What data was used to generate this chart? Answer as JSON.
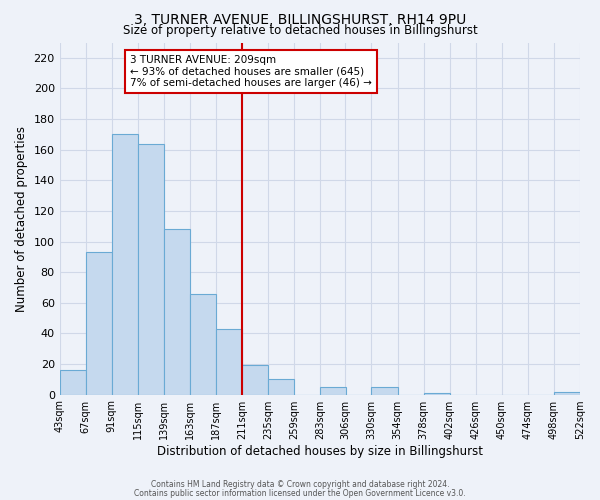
{
  "title": "3, TURNER AVENUE, BILLINGSHURST, RH14 9PU",
  "subtitle": "Size of property relative to detached houses in Billingshurst",
  "xlabel": "Distribution of detached houses by size in Billingshurst",
  "ylabel": "Number of detached properties",
  "bar_color": "#c5d9ee",
  "bar_edge_color": "#6aaad4",
  "reference_line_color": "#cc0000",
  "bin_edges": [
    43,
    67,
    91,
    115,
    139,
    163,
    187,
    211,
    235,
    259,
    283,
    306,
    330,
    354,
    378,
    402,
    426,
    450,
    474,
    498,
    522
  ],
  "bin_labels": [
    "43sqm",
    "67sqm",
    "91sqm",
    "115sqm",
    "139sqm",
    "163sqm",
    "187sqm",
    "211sqm",
    "235sqm",
    "259sqm",
    "283sqm",
    "306sqm",
    "330sqm",
    "354sqm",
    "378sqm",
    "402sqm",
    "426sqm",
    "450sqm",
    "474sqm",
    "498sqm",
    "522sqm"
  ],
  "counts": [
    16,
    93,
    170,
    164,
    108,
    66,
    43,
    19,
    10,
    0,
    5,
    0,
    5,
    0,
    1,
    0,
    0,
    0,
    0,
    2
  ],
  "ref_bin_index": 7,
  "ylim": [
    0,
    230
  ],
  "yticks": [
    0,
    20,
    40,
    60,
    80,
    100,
    120,
    140,
    160,
    180,
    200,
    220
  ],
  "annotation_title": "3 TURNER AVENUE: 209sqm",
  "annotation_line1": "← 93% of detached houses are smaller (645)",
  "annotation_line2": "7% of semi-detached houses are larger (46) →",
  "footer_line1": "Contains HM Land Registry data © Crown copyright and database right 2024.",
  "footer_line2": "Contains public sector information licensed under the Open Government Licence v3.0.",
  "background_color": "#eef2f9",
  "grid_color": "#d0d8e8"
}
